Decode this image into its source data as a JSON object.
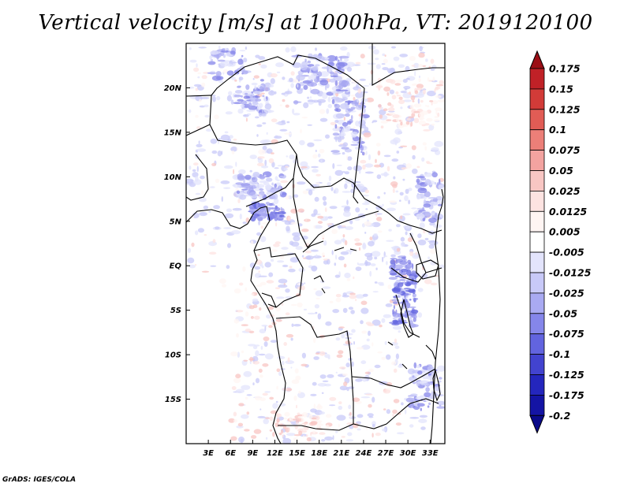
{
  "title": "Vertical velocity [m/s] at 1000hPa, VT: 2019120100",
  "credit": "GrADS: IGES/COLA",
  "map": {
    "lat_labels": [
      "20N",
      "15N",
      "10N",
      "5N",
      "EQ",
      "5S",
      "10S",
      "15S"
    ],
    "lon_labels": [
      "3E",
      "6E",
      "9E",
      "12E",
      "15E",
      "18E",
      "21E",
      "24E",
      "27E",
      "30E",
      "33E"
    ],
    "lat_values": [
      20,
      15,
      10,
      5,
      0,
      -5,
      -10,
      -15
    ],
    "lon_values": [
      3,
      6,
      9,
      12,
      15,
      18,
      21,
      24,
      27,
      30,
      33
    ],
    "lon_range": [
      0,
      35
    ],
    "lat_range": [
      -20,
      25
    ],
    "colors": {
      "border": "#000000"
    }
  },
  "colorbar": {
    "labels": [
      "0.175",
      "0.15",
      "0.125",
      "0.1",
      "0.075",
      "0.05",
      "0.025",
      "0.0125",
      "0.005",
      "-0.005",
      "-0.0125",
      "-0.025",
      "-0.05",
      "-0.075",
      "-0.1",
      "-0.125",
      "-0.175",
      "-0.2"
    ],
    "colors": [
      "#9b0e15",
      "#c02127",
      "#d23b38",
      "#e15c55",
      "#ec7f78",
      "#f3a3a0",
      "#f8c6c3",
      "#fde3e1",
      "#fff5f3",
      "#ffffff",
      "#e3e4fc",
      "#c8c9f8",
      "#a9aaf2",
      "#8586ea",
      "#6264df",
      "#4243cf",
      "#2426bd",
      "#1414a4",
      "#0a0a8a"
    ]
  }
}
